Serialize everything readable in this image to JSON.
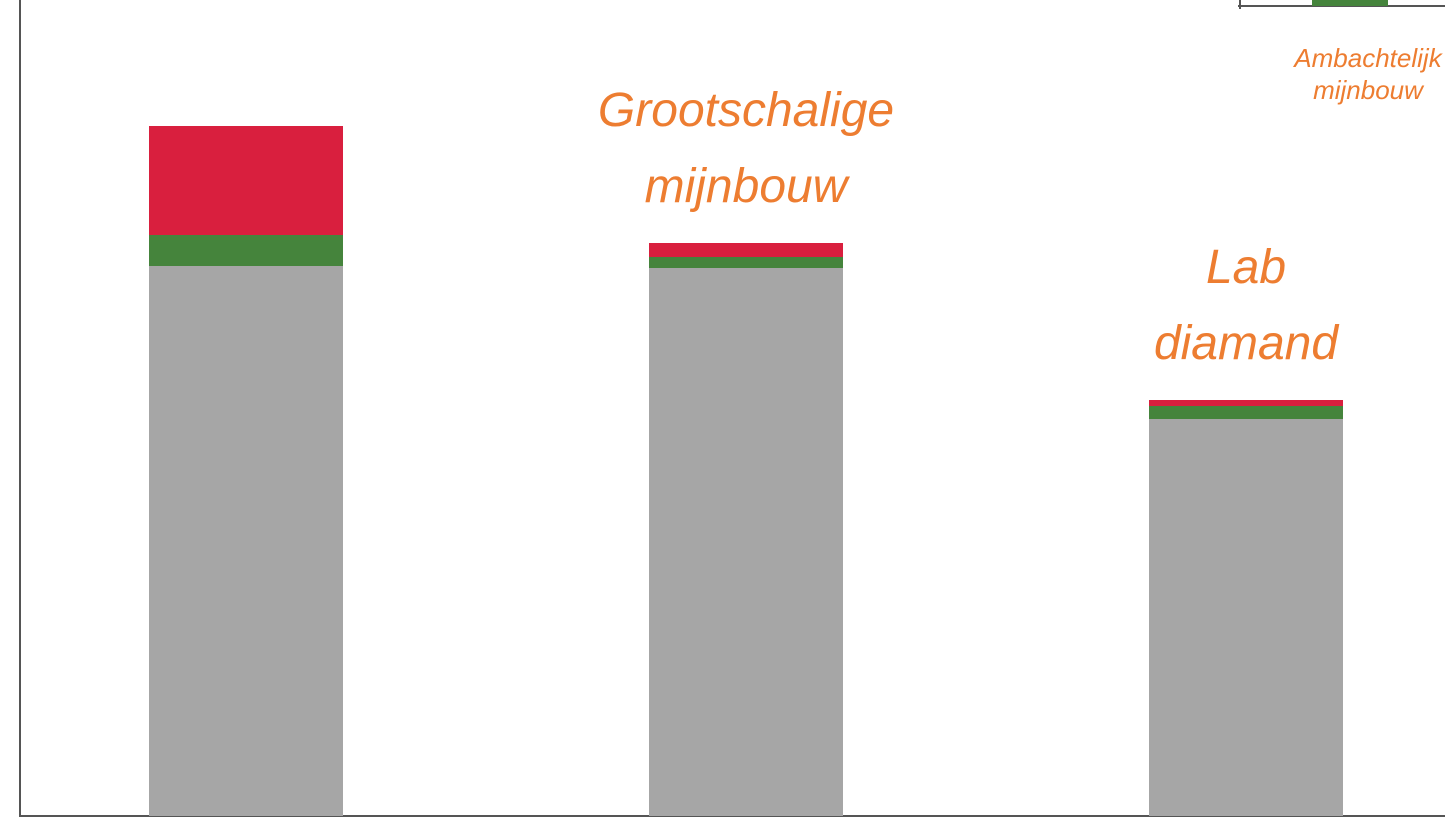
{
  "chart_data": {
    "type": "stacked_bar",
    "categories": [
      null,
      "Grootschalige mijnbouw",
      "Lab diamand"
    ],
    "series": [
      {
        "color": "#a6a6a6",
        "values": [
          550,
          548,
          397
        ]
      },
      {
        "color": "#45843c",
        "values": [
          31,
          11,
          13
        ]
      },
      {
        "color": "#d91f3e",
        "values": [
          109,
          14,
          6
        ]
      }
    ],
    "ylim": [
      0,
      816
    ],
    "annotations": [
      "Ambachtelijk mijnbouw"
    ]
  }
}
